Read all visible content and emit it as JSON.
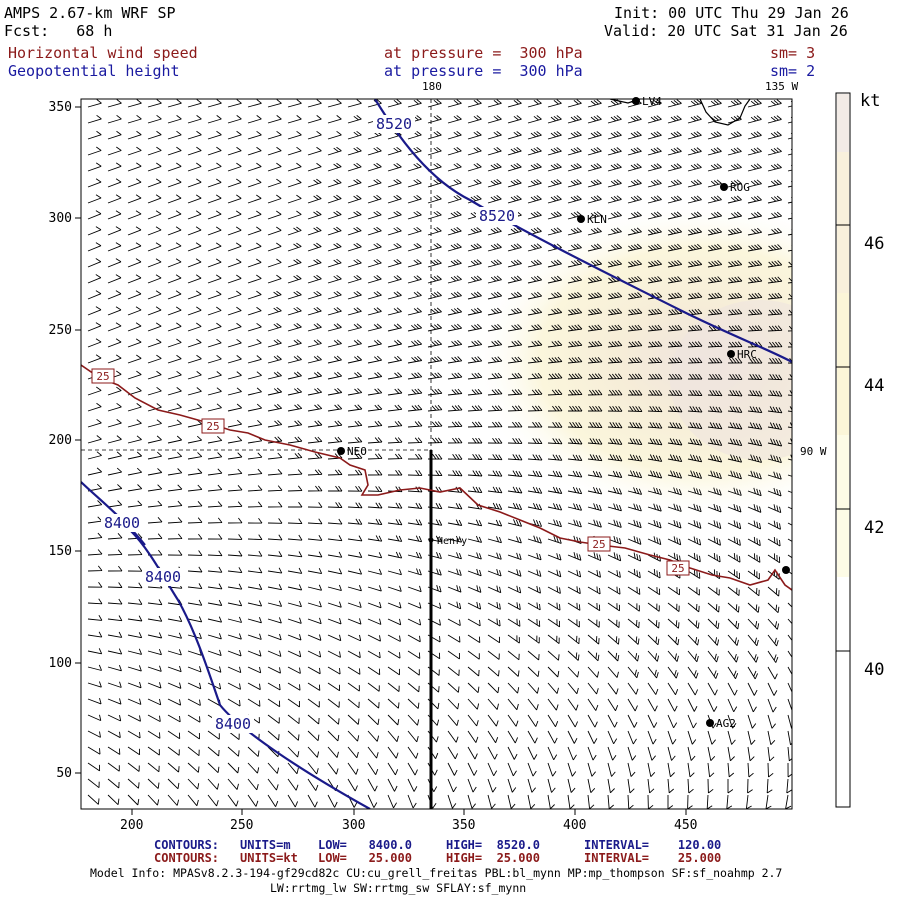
{
  "header": {
    "model": "AMPS 2.67-km WRF SP",
    "forecast": "Fcst:   68 h",
    "init": "Init: 00 UTC Thu 29 Jan 26",
    "valid": "Valid: 20 UTC Sat 31 Jan 26",
    "field1": {
      "name": "Horizontal wind speed",
      "level": "at pressure =  300 hPa",
      "sm": "sm= 3"
    },
    "field2": {
      "name": "Geopotential height",
      "level": "at pressure =  300 hPa",
      "sm": "sm= 2"
    }
  },
  "map": {
    "meridian_labels": {
      "top": "180",
      "corner": "135 W",
      "right": "90 W"
    },
    "x_ticks": [
      "200",
      "250",
      "300",
      "350",
      "400",
      "450"
    ],
    "y_ticks": [
      "50",
      "100",
      "150",
      "200",
      "250",
      "300",
      "350"
    ],
    "stations": [
      {
        "name": "ROG"
      },
      {
        "name": "KLN"
      },
      {
        "name": "HRC"
      },
      {
        "name": "NEO"
      },
      {
        "name": "Henry"
      },
      {
        "name": "AG2"
      },
      {
        "name": "LV4"
      }
    ],
    "height_contour_labels": [
      "8520",
      "8520",
      "8400",
      "8400",
      "8400"
    ],
    "speed_contour_labels": [
      "25",
      "25",
      "25",
      "25"
    ]
  },
  "colorbar": {
    "unit": "kt",
    "labels": [
      "46",
      "44",
      "42",
      "40"
    ],
    "colors": [
      "#f2ebe6",
      "#f8f0dc",
      "#fbf5d8",
      "#fdfbe6",
      "#ffffff"
    ]
  },
  "footer": {
    "contours_height": {
      "label": "CONTOURS:",
      "units": "UNITS=m",
      "low": "LOW=   8400.0",
      "high": "HIGH=  8520.0",
      "interval": "INTERVAL=    120.00"
    },
    "contours_speed": {
      "label": "CONTOURS:",
      "units": "UNITS=kt",
      "low": "LOW=   25.000",
      "high": "HIGH=  25.000",
      "interval": "INTERVAL=    25.000"
    },
    "model_info_1": "Model Info: MPASv8.2.3-194-gf29cd82c CU:cu_grell_freitas PBL:bl_mynn MP:mp_thompson SF:sf_noahmp 2.7",
    "model_info_2": "LW:rrtmg_lw SW:rrtmg_sw SFLAY:sf_mynn"
  }
}
